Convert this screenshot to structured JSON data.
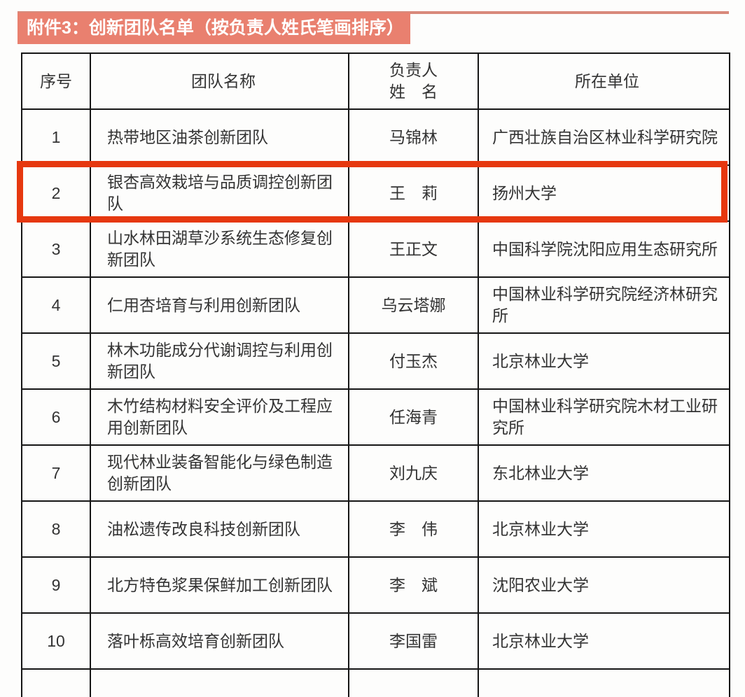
{
  "page": {
    "title": "附件3：创新团队名单（按负责人姓氏笔画排序）",
    "accent_color": "#e9806f",
    "highlight_color": "#e6380f"
  },
  "table": {
    "headers": {
      "index": "序号",
      "team": "团队名称",
      "leader_line1": "负责人",
      "leader_line2": "姓　名",
      "unit": "所在单位"
    },
    "rows": [
      {
        "index": "1",
        "team": "热带地区油茶创新团队",
        "leader": "马锦林",
        "unit": "广西壮族自治区林业科学研究院",
        "highlighted": false
      },
      {
        "index": "2",
        "team": "银杏高效栽培与品质调控创新团队",
        "leader": "王　莉",
        "unit": "扬州大学",
        "highlighted": true
      },
      {
        "index": "3",
        "team": "山水林田湖草沙系统生态修复创新团队",
        "leader": "王正文",
        "unit": "中国科学院沈阳应用生态研究所",
        "highlighted": false
      },
      {
        "index": "4",
        "team": "仁用杏培育与利用创新团队",
        "leader": "乌云塔娜",
        "unit": "中国林业科学研究院经济林研究所",
        "highlighted": false
      },
      {
        "index": "5",
        "team": "林木功能成分代谢调控与利用创新团队",
        "leader": "付玉杰",
        "unit": "北京林业大学",
        "highlighted": false
      },
      {
        "index": "6",
        "team": "木竹结构材料安全评价及工程应用创新团队",
        "leader": "任海青",
        "unit": "中国林业科学研究院木材工业研究所",
        "highlighted": false
      },
      {
        "index": "7",
        "team": "现代林业装备智能化与绿色制造创新团队",
        "leader": "刘九庆",
        "unit": "东北林业大学",
        "highlighted": false
      },
      {
        "index": "8",
        "team": "油松遗传改良科技创新团队",
        "leader": "李　伟",
        "unit": "北京林业大学",
        "highlighted": false
      },
      {
        "index": "9",
        "team": "北方特色浆果保鲜加工创新团队",
        "leader": "李　斌",
        "unit": "沈阳农业大学",
        "highlighted": false
      },
      {
        "index": "10",
        "team": "落叶栎高效培育创新团队",
        "leader": "李国雷",
        "unit": "北京林业大学",
        "highlighted": false
      }
    ]
  }
}
